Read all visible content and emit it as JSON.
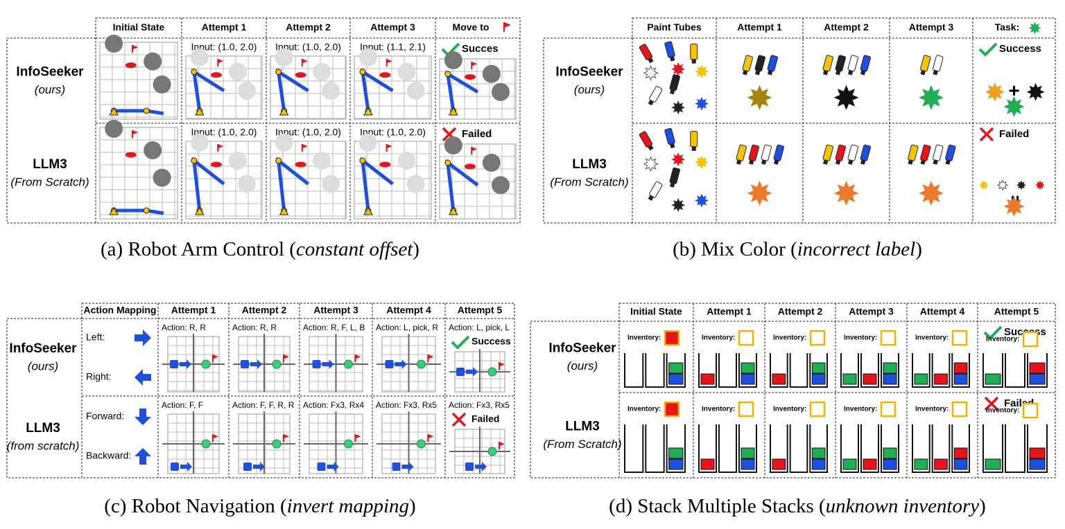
{
  "panels": [
    {
      "caption": {
        "prefix": "(a) Robot Arm Control (",
        "emphasis": "constant offset",
        "suffix": ")"
      },
      "columns": [
        "Initial State",
        "Attempt 1",
        "Attempt 2",
        "Attempt 3",
        "Move to"
      ],
      "rows": [
        {
          "name": "InfoSeeker",
          "sub": "(ours)",
          "attempts": [
            "Input: (1.0, 2.0)",
            "Input: (1.0, 2.0)",
            "Input: (1.1, 2.1)"
          ],
          "result": "Succes"
        },
        {
          "name": "LLM3",
          "sub": "(From Scratch)",
          "attempts": [
            "Input: (1.0, 2.0)",
            "Input: (1.0, 2.0)",
            "Input: (1.0, 2.0)"
          ],
          "result": "Failed"
        }
      ]
    },
    {
      "caption": {
        "prefix": "(b) Mix Color (",
        "emphasis": "incorrect label",
        "suffix": ")"
      },
      "columns": [
        "Paint Tubes",
        "Attempt 1",
        "Attempt 2",
        "Attempt 3",
        "Task:"
      ],
      "rows": [
        {
          "name": "InfoSeeker",
          "sub": "(ours)",
          "result": "Success"
        },
        {
          "name": "LLM3",
          "sub": "(From Scratch)",
          "result": "Failed"
        }
      ]
    },
    {
      "caption": {
        "prefix": "(c) Robot Navigation (",
        "emphasis": "invert mapping",
        "suffix": ")"
      },
      "columns": [
        "Action Mapping",
        "Attempt 1",
        "Attempt 2",
        "Attempt 3",
        "Attempt 4",
        "Attempt 5"
      ],
      "mapping": [
        "Left:",
        "Right:",
        "Forward:",
        "Backward:"
      ],
      "rows": [
        {
          "name": "InfoSeeker",
          "sub": "(ours)",
          "attempts": [
            "Action: R, R",
            "Action: R, R",
            "Action: R, F, L, B",
            "Action: L, pick, R",
            "Action: L, pick, L"
          ],
          "result": "Success"
        },
        {
          "name": "LLM3",
          "sub": "(from scratch)",
          "attempts": [
            "Action: F, F",
            "Action: F, F, R, R",
            "Action: Fx3, Rx4",
            "Action: Fx3, Rx5",
            "Action: Fx3, Rx5"
          ],
          "result": "Failed"
        }
      ]
    },
    {
      "caption": {
        "prefix": "(d) Stack Multiple Stacks (",
        "emphasis": "unknown inventory",
        "suffix": ")"
      },
      "columns": [
        "Initial State",
        "Attempt 1",
        "Attempt 2",
        "Attempt 3",
        "Attempt 4",
        "Attempt 5"
      ],
      "inventory_label": "Inventory:",
      "rows": [
        {
          "name": "InfoSeeker",
          "sub": "(ours)",
          "result": "Success"
        },
        {
          "name": "LLM3",
          "sub": "(From Scratch)",
          "result": "Failed"
        }
      ]
    }
  ]
}
